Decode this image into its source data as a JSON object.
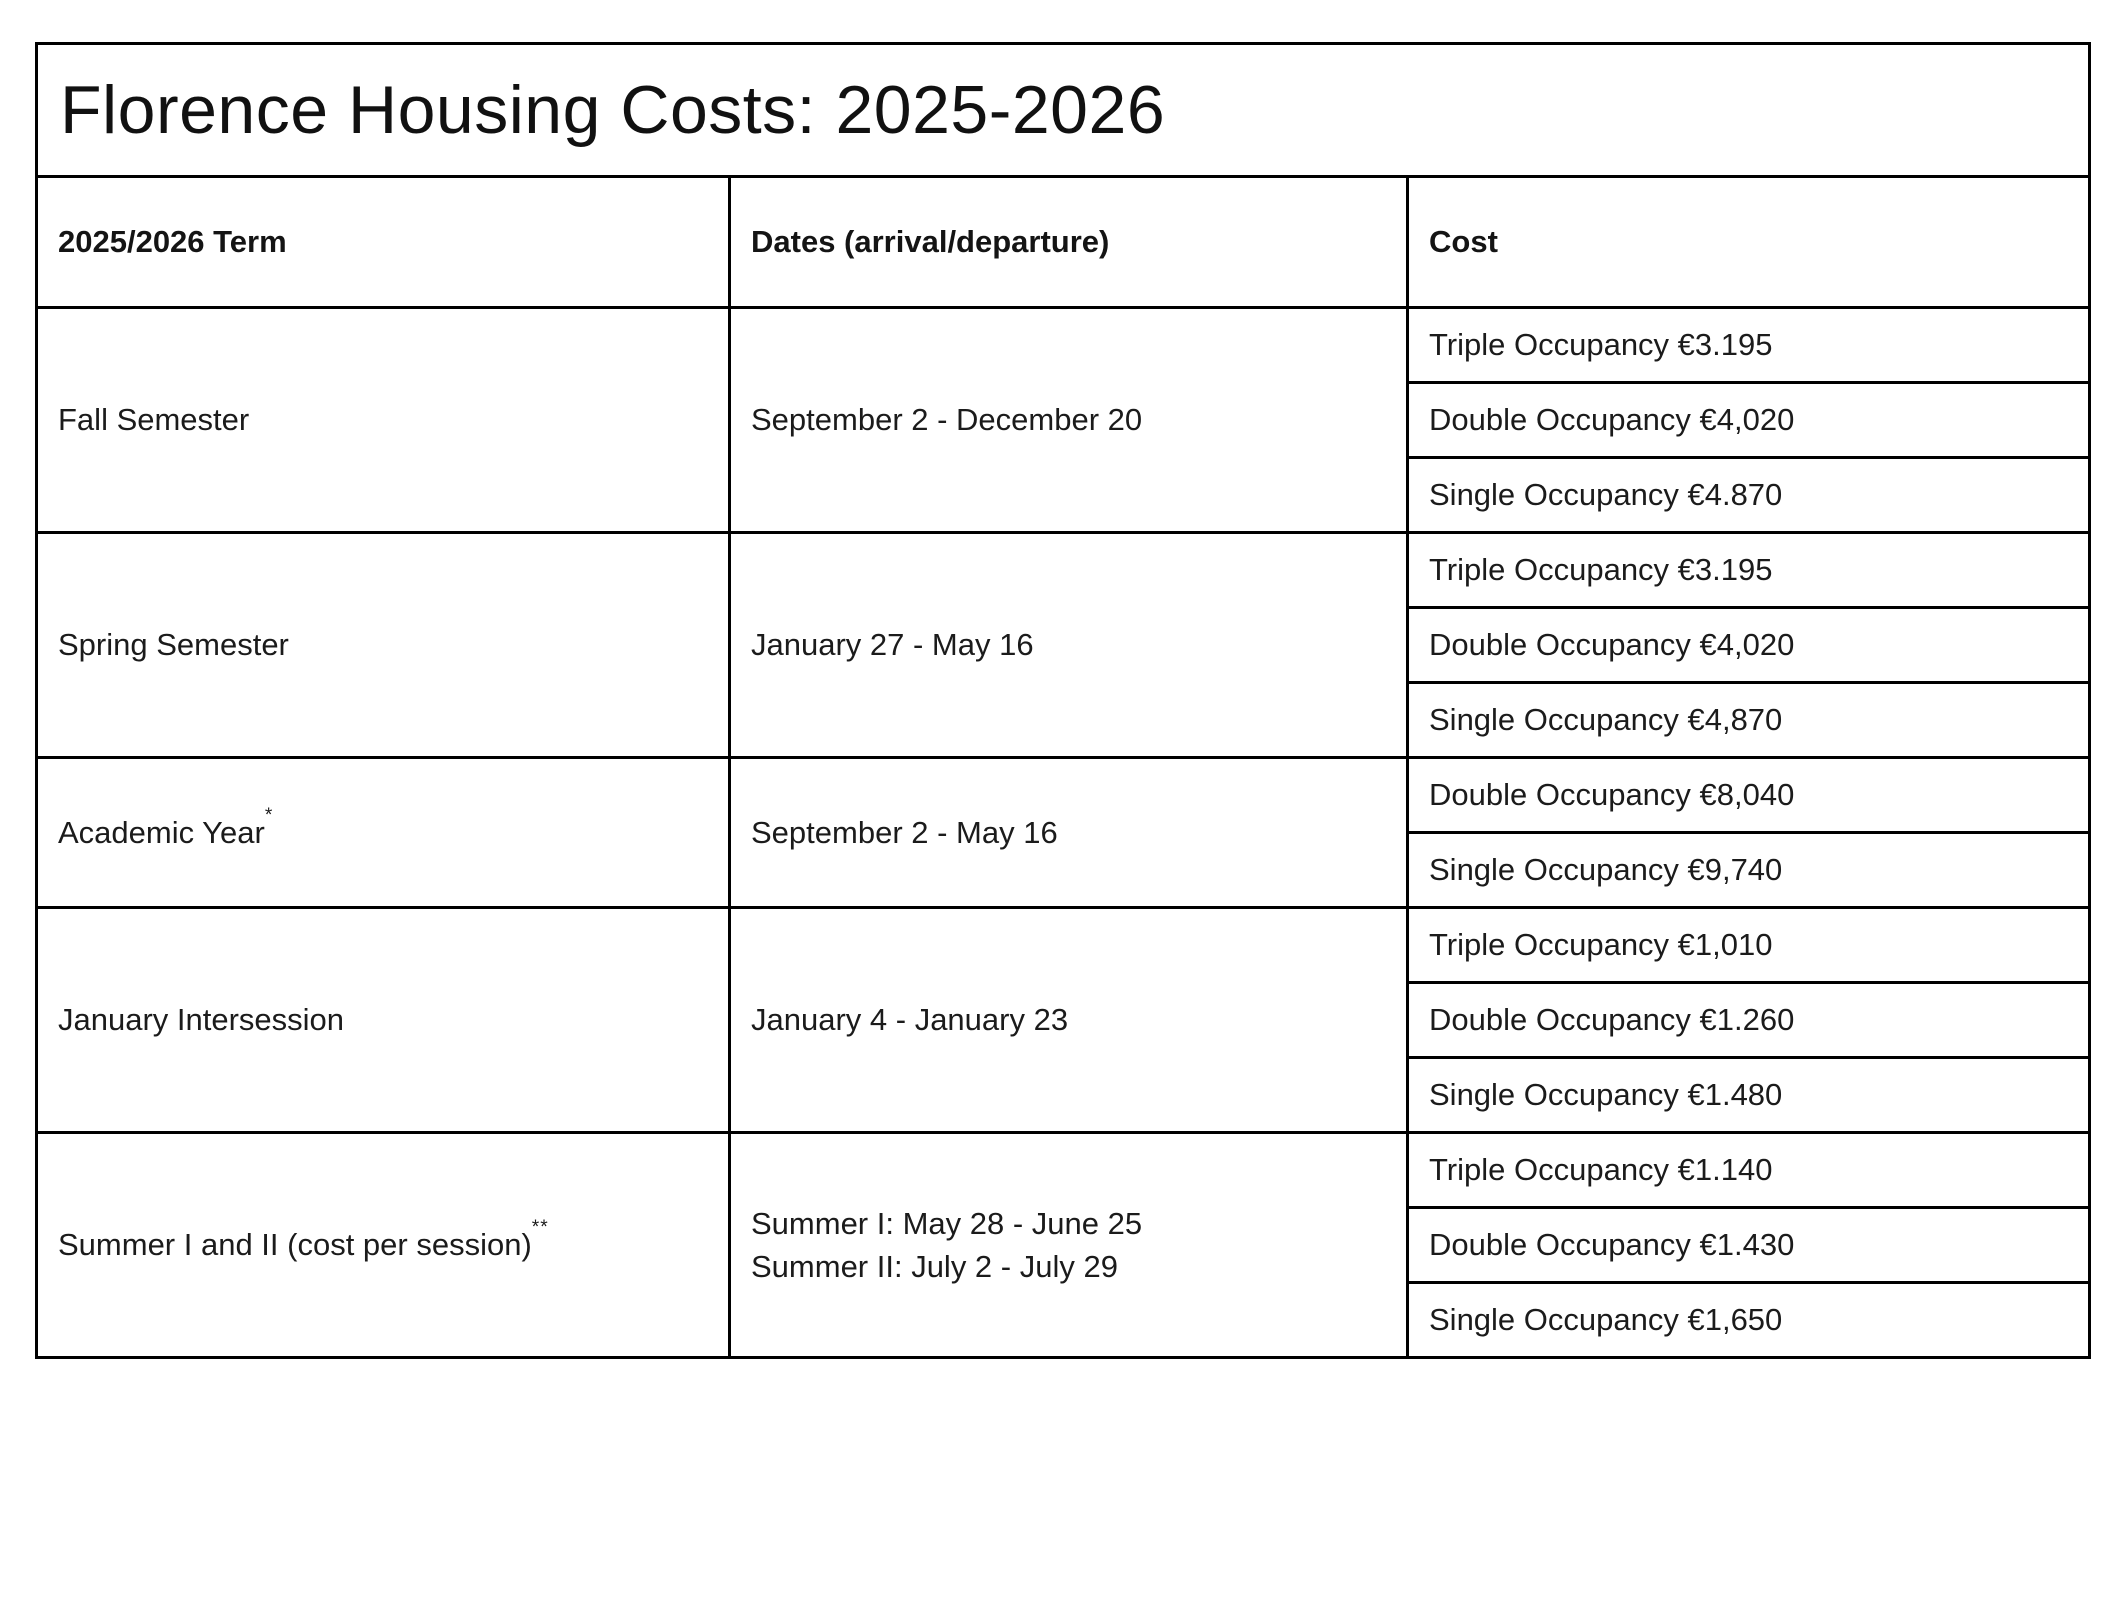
{
  "page": {
    "background_color": "#ffffff",
    "border_color": "#000000",
    "text_color": "#141414"
  },
  "title": "Florence Housing Costs: 2025-2026",
  "table": {
    "headers": [
      "2025/2026 Term",
      "Dates (arrival/departure)",
      "Cost"
    ],
    "rows": [
      {
        "term": "Fall Semester",
        "term_sup": "",
        "dates": [
          "September 2 - December 20"
        ],
        "costs": [
          "Triple Occupancy €3.195",
          "Double Occupancy €4,020",
          "Single Occupancy €4.870"
        ]
      },
      {
        "term": "Spring Semester",
        "term_sup": "",
        "dates": [
          "January 27 - May 16"
        ],
        "costs": [
          "Triple Occupancy €3.195",
          "Double Occupancy €4,020",
          "Single Occupancy €4,870"
        ]
      },
      {
        "term": "Academic Year",
        "term_sup": "*",
        "dates": [
          "September 2 - May 16"
        ],
        "costs": [
          "Double Occupancy €8,040",
          "Single Occupancy €9,740"
        ]
      },
      {
        "term": "January Intersession",
        "term_sup": "",
        "dates": [
          "January 4 - January 23"
        ],
        "costs": [
          "Triple Occupancy €1,010",
          "Double Occupancy €1.260",
          "Single Occupancy €1.480"
        ]
      },
      {
        "term": "Summer I and II (cost per session)",
        "term_sup": "**",
        "dates": [
          "Summer I: May 28 - June 25",
          "Summer II: July 2 - July 29"
        ],
        "costs": [
          "Triple Occupancy €1.140",
          "Double Occupancy €1.430",
          "Single Occupancy €1,650"
        ]
      }
    ]
  }
}
